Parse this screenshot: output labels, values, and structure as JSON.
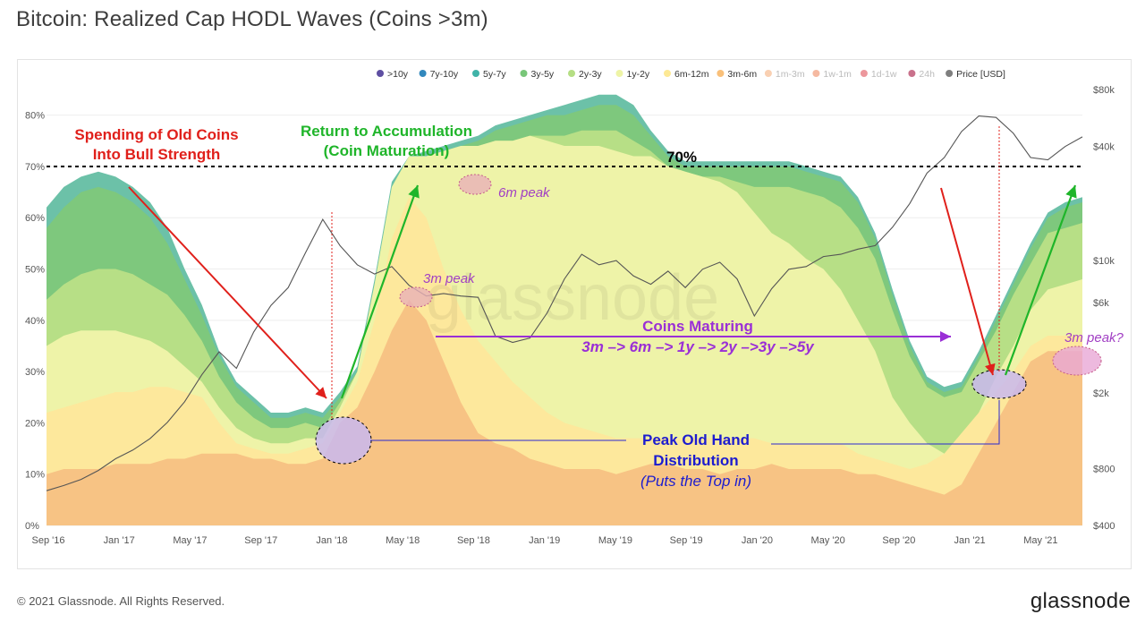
{
  "page": {
    "title": "Bitcoin: Realized Cap HODL Waves (Coins >3m)",
    "copyright": "© 2021 Glassnode. All Rights Reserved.",
    "brand": "glassnode",
    "watermark": "glassnode"
  },
  "chart_data": {
    "type": "area",
    "stacked": true,
    "x_ticks": [
      "Sep '16",
      "Jan '17",
      "May '17",
      "Sep '17",
      "Jan '18",
      "May '18",
      "Sep '18",
      "Jan '19",
      "May '19",
      "Sep '19",
      "Jan '20",
      "May '20",
      "Sep '20",
      "Jan '21",
      "May '21"
    ],
    "y_left_ticks": [
      "0%",
      "10%",
      "20%",
      "30%",
      "40%",
      "50%",
      "60%",
      "70%",
      "80%"
    ],
    "y_left_range": [
      0,
      85
    ],
    "y_right_ticks": [
      "$400",
      "$800",
      "$2k",
      "$6k",
      "$10k",
      "$40k",
      "$80k"
    ],
    "y_right_scale": "log",
    "y_right_range_usd": [
      400,
      80000
    ],
    "grid": true,
    "legend_position": "top",
    "legend": [
      {
        "label": ">10y",
        "color": "#5e4fa2",
        "active": true
      },
      {
        "label": "7y-10y",
        "color": "#3288bd",
        "active": true
      },
      {
        "label": "5y-7y",
        "color": "#40b3a8",
        "active": true
      },
      {
        "label": "3y-5y",
        "color": "#78c679",
        "active": true
      },
      {
        "label": "2y-3y",
        "color": "#b5de84",
        "active": true
      },
      {
        "label": "1y-2y",
        "color": "#eef4a6",
        "active": true
      },
      {
        "label": "6m-12m",
        "color": "#fde995",
        "active": true
      },
      {
        "label": "3m-6m",
        "color": "#f9c07a",
        "active": true
      },
      {
        "label": "1m-3m",
        "color": "#f5b07e",
        "active": false
      },
      {
        "label": "1w-1m",
        "color": "#ef8a62",
        "active": false
      },
      {
        "label": "1d-1w",
        "color": "#e0525a",
        "active": false
      },
      {
        "label": "24h",
        "color": "#a5123d",
        "active": false
      },
      {
        "label": "Price [USD]",
        "color": "#7f7f7f",
        "active": true
      }
    ],
    "x": [
      0,
      1,
      2,
      3,
      4,
      5,
      6,
      7,
      8,
      9,
      10,
      11,
      12,
      13,
      14,
      15,
      16,
      17,
      18,
      19,
      20,
      21,
      22,
      23,
      24,
      25,
      26,
      27,
      28,
      29,
      30,
      31,
      32,
      33,
      34,
      35,
      36,
      37,
      38,
      39,
      40,
      41,
      42,
      43,
      44,
      45,
      46,
      47,
      48,
      49,
      50,
      51,
      52,
      53,
      54,
      55,
      56,
      57,
      58,
      59,
      60
    ],
    "series": [
      {
        "color": "#f7c384",
        "cumulative": [
          10,
          11,
          11,
          11,
          12,
          12,
          12,
          13,
          13,
          14,
          14,
          14,
          13,
          13,
          12,
          12,
          13,
          20,
          23,
          30,
          38,
          44,
          40,
          32,
          24,
          18,
          16,
          15,
          13,
          12,
          11,
          11,
          11,
          10,
          11,
          12,
          12,
          11,
          11,
          10,
          11,
          11,
          12,
          11,
          11,
          11,
          11,
          10,
          10,
          9,
          8,
          7,
          6,
          8,
          14,
          20,
          26,
          32,
          34,
          34,
          34
        ]
      },
      {
        "color": "#fde89c",
        "cumulative": [
          22,
          23,
          24,
          25,
          26,
          26,
          27,
          27,
          26,
          25,
          20,
          16,
          15,
          14,
          14,
          15,
          16,
          22,
          28,
          40,
          56,
          64,
          60,
          50,
          42,
          36,
          32,
          28,
          25,
          22,
          20,
          19,
          18,
          17,
          17,
          17,
          17,
          17,
          17,
          17,
          17,
          17,
          16,
          16,
          16,
          16,
          16,
          14,
          13,
          12,
          11,
          12,
          14,
          18,
          22,
          26,
          30,
          35,
          37,
          37,
          37
        ]
      },
      {
        "color": "#eef3a8",
        "cumulative": [
          35,
          37,
          38,
          38,
          38,
          37,
          36,
          34,
          31,
          28,
          23,
          19,
          17,
          16,
          16,
          17,
          17,
          23,
          30,
          47,
          66,
          72,
          72,
          73,
          74,
          74,
          75,
          75,
          76,
          75,
          74,
          74,
          74,
          73,
          72,
          72,
          70,
          69,
          68,
          67,
          65,
          61,
          57,
          55,
          52,
          50,
          46,
          40,
          34,
          25,
          20,
          16,
          14,
          15,
          22,
          29,
          35,
          42,
          46,
          47,
          48
        ]
      },
      {
        "color": "#b7df86",
        "cumulative": [
          44,
          47,
          49,
          50,
          50,
          49,
          47,
          45,
          41,
          36,
          29,
          24,
          21,
          19,
          19,
          20,
          19,
          24,
          30,
          47,
          66,
          72,
          72,
          73,
          74,
          74,
          75,
          75,
          76,
          76,
          76,
          77,
          77,
          77,
          75,
          73,
          70,
          69,
          68,
          68,
          67,
          66,
          66,
          66,
          65,
          64,
          62,
          58,
          52,
          42,
          33,
          27,
          25,
          26,
          32,
          38,
          45,
          51,
          57,
          58,
          59
        ]
      },
      {
        "color": "#7ec87d",
        "cumulative": [
          58,
          62,
          65,
          66,
          65,
          63,
          60,
          55,
          48,
          41,
          33,
          27,
          24,
          21,
          21,
          22,
          21,
          25,
          30,
          47,
          66,
          72,
          72,
          73,
          74,
          75,
          77,
          78,
          79,
          80,
          80,
          81,
          82,
          82,
          80,
          76,
          72,
          70,
          70,
          70,
          70,
          70,
          70,
          70,
          69,
          68,
          67,
          63,
          56,
          45,
          35,
          28,
          26,
          27,
          33,
          40,
          47,
          54,
          60,
          62,
          63
        ]
      },
      {
        "color": "#6cc1a8",
        "cumulative": [
          62,
          66,
          68,
          69,
          68,
          66,
          63,
          58,
          50,
          43,
          34,
          28,
          25,
          22,
          22,
          23,
          22,
          26,
          31,
          48,
          67,
          72,
          73,
          74,
          75,
          76,
          78,
          79,
          80,
          81,
          82,
          83,
          84,
          84,
          82,
          77,
          73,
          71,
          71,
          71,
          71,
          71,
          71,
          71,
          70,
          69,
          68,
          64,
          57,
          46,
          36,
          29,
          27,
          28,
          34,
          41,
          48,
          55,
          61,
          63,
          64
        ]
      }
    ],
    "annotations": {
      "reference_line_label": "70%",
      "spending": "Spending of Old Coins\nInto Bull Strength",
      "return": "Return to Accumulation\n(Coin Maturation)",
      "peak6m": "6m peak",
      "peak3m": "3m peak",
      "maturing_title": "Coins Maturing",
      "maturing_sub": "3m –> 6m –> 1y –> 2y –>3y –>5y",
      "peak_dist_title": "Peak Old Hand\nDistribution",
      "peak_dist_sub": "(Puts the Top in)",
      "peak3m_q": "3m peak?"
    },
    "price_usd_approx": [
      610,
      650,
      700,
      780,
      900,
      1000,
      1150,
      1400,
      1800,
      2500,
      3300,
      2700,
      4200,
      5800,
      7200,
      11000,
      16500,
      12000,
      9500,
      8500,
      9300,
      7400,
      6500,
      6700,
      6500,
      6400,
      4000,
      3700,
      3900,
      5300,
      8000,
      10800,
      9500,
      10000,
      8300,
      7500,
      8800,
      7200,
      9000,
      9800,
      8000,
      5100,
      7100,
      9000,
      9300,
      10500,
      10800,
      11500,
      12000,
      15000,
      20000,
      29000,
      35000,
      48000,
      58000,
      57000,
      47000,
      35000,
      34000,
      40000,
      45000
    ]
  }
}
